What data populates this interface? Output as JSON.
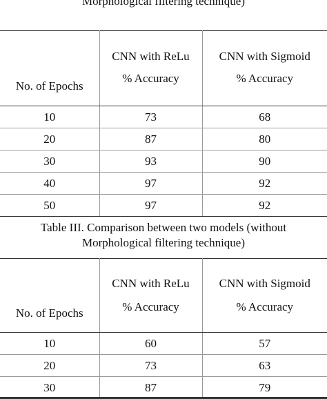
{
  "table2": {
    "caption_line2": "Morphological filtering technique)",
    "col_epochs": "No. of Epochs",
    "col_relu": "CNN with ReLu",
    "col_sigmoid": "CNN with Sigmoid",
    "sub_relu": "% Accuracy",
    "sub_sigmoid": "% Accuracy",
    "rows": [
      {
        "epochs": "10",
        "relu": "73",
        "sigmoid": "68"
      },
      {
        "epochs": "20",
        "relu": "87",
        "sigmoid": "80"
      },
      {
        "epochs": "30",
        "relu": "93",
        "sigmoid": "90"
      },
      {
        "epochs": "40",
        "relu": "97",
        "sigmoid": "92"
      },
      {
        "epochs": "50",
        "relu": "97",
        "sigmoid": "92"
      }
    ]
  },
  "table3": {
    "caption_line1": "Table III. Comparison between two models (without",
    "caption_line2": "Morphological filtering technique)",
    "col_epochs": "No. of Epochs",
    "col_relu": "CNN with ReLu",
    "col_sigmoid": "CNN with Sigmoid",
    "sub_relu": "% Accuracy",
    "sub_sigmoid": "% Accuracy",
    "rows": [
      {
        "epochs": "10",
        "relu": "60",
        "sigmoid": "57"
      },
      {
        "epochs": "20",
        "relu": "73",
        "sigmoid": "63"
      },
      {
        "epochs": "30",
        "relu": "87",
        "sigmoid": "79"
      }
    ]
  }
}
